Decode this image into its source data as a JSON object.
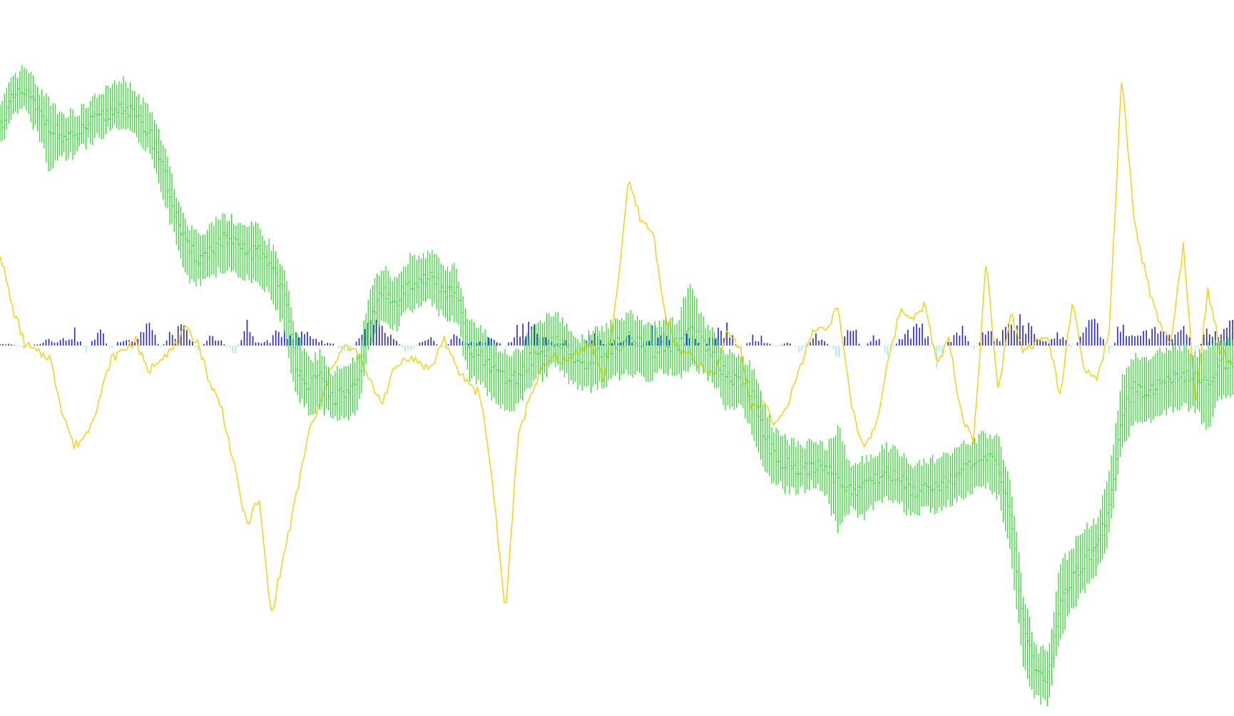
{
  "chart_data": {
    "type": "line",
    "title": "",
    "xlabel": "",
    "ylabel": "",
    "grid": false,
    "legend": "none",
    "colors": {
      "background": "#ffffff",
      "price_bars": "#22dd22",
      "oscillator_line": "#ffcc00",
      "histogram_positive": "#2222ee",
      "histogram_negative": "#99eeee"
    },
    "price_bars": {
      "ylim": [
        0,
        100
      ],
      "x": [
        0,
        10,
        20,
        30,
        40,
        50,
        60,
        70,
        80,
        90,
        100,
        110,
        120,
        130,
        140,
        150,
        160,
        170,
        180,
        190,
        200,
        210,
        220,
        230,
        240,
        250,
        260,
        270,
        280,
        290,
        300,
        310,
        320,
        330,
        340,
        350,
        360,
        370,
        380,
        390,
        400,
        410,
        420,
        430,
        440,
        450,
        460,
        470,
        480,
        490,
        500,
        510,
        520,
        530,
        540,
        550,
        560,
        570,
        580,
        590,
        600,
        610,
        620,
        630,
        640,
        650,
        660,
        670,
        680,
        690,
        700,
        710,
        720,
        730,
        740,
        750,
        760,
        770,
        780,
        790,
        800,
        810,
        820,
        830,
        840,
        850,
        860,
        870,
        880,
        890,
        900,
        910,
        920,
        930,
        940,
        950,
        960,
        970,
        980,
        990,
        1000
      ],
      "close": [
        86,
        90,
        91,
        88,
        86,
        84,
        84,
        86,
        87,
        88,
        89,
        87,
        85,
        81,
        74,
        68,
        66,
        67,
        69,
        68,
        67,
        67,
        65,
        61,
        50,
        47,
        48,
        45,
        46,
        47,
        57,
        61,
        59,
        62,
        63,
        63,
        61,
        61,
        52,
        51,
        49,
        48,
        48,
        51,
        52,
        54,
        52,
        50,
        51,
        52,
        53,
        54,
        53,
        52,
        53,
        53,
        55,
        53,
        51,
        48,
        48,
        46,
        39,
        36,
        35,
        34,
        35,
        34,
        33,
        31,
        32,
        33,
        34,
        33,
        31,
        32,
        32,
        33,
        34,
        35,
        36,
        35,
        27,
        11,
        4,
        3,
        15,
        18,
        21,
        23,
        29,
        43,
        47,
        46,
        47,
        48,
        48,
        48,
        48,
        50,
        50
      ],
      "low": [
        84,
        88,
        89,
        86,
        80,
        82,
        82,
        84,
        85,
        86,
        87,
        85,
        83,
        78,
        71,
        64,
        63,
        64,
        65,
        65,
        64,
        63,
        61,
        57,
        46,
        44,
        44,
        43,
        43,
        44,
        54,
        58,
        56,
        59,
        60,
        60,
        58,
        58,
        49,
        48,
        46,
        44,
        45,
        48,
        49,
        51,
        49,
        47,
        47,
        48,
        49,
        50,
        49,
        49,
        50,
        49,
        51,
        50,
        48,
        44,
        45,
        41,
        35,
        33,
        32,
        32,
        33,
        31,
        26,
        29,
        28,
        30,
        31,
        30,
        28,
        29,
        29,
        30,
        31,
        32,
        33,
        31,
        22,
        6,
        1,
        0,
        10,
        14,
        17,
        20,
        25,
        38,
        42,
        42,
        43,
        44,
        45,
        44,
        41,
        46,
        46
      ],
      "high": [
        88,
        92,
        94,
        91,
        89,
        87,
        87,
        88,
        90,
        91,
        92,
        90,
        88,
        84,
        77,
        71,
        69,
        70,
        72,
        71,
        70,
        70,
        67,
        64,
        54,
        50,
        51,
        48,
        49,
        50,
        60,
        64,
        62,
        65,
        66,
        66,
        64,
        64,
        56,
        55,
        52,
        51,
        51,
        54,
        56,
        57,
        55,
        53,
        54,
        55,
        56,
        57,
        56,
        55,
        56,
        56,
        62,
        56,
        54,
        51,
        51,
        49,
        43,
        39,
        38,
        37,
        38,
        37,
        40,
        34,
        35,
        36,
        37,
        36,
        34,
        35,
        35,
        36,
        37,
        38,
        39,
        38,
        31,
        15,
        7,
        6,
        19,
        22,
        25,
        26,
        33,
        47,
        51,
        50,
        51,
        52,
        52,
        51,
        52,
        53,
        53
      ]
    },
    "oscillator": {
      "name": "",
      "ylim": [
        -100,
        100
      ],
      "values": [
        32,
        15,
        4,
        1,
        0,
        -16,
        -28,
        -24,
        -14,
        -1,
        2,
        5,
        -5,
        0,
        2,
        8,
        5,
        -8,
        -16,
        -34,
        -52,
        -44,
        -80,
        -62,
        -44,
        -24,
        -15,
        -2,
        3,
        1,
        -8,
        -14,
        -4,
        0,
        -2,
        -4,
        6,
        -4,
        -8,
        -12,
        -40,
        -80,
        -26,
        -12,
        -4,
        0,
        -2,
        2,
        4,
        -8,
        18,
        54,
        42,
        38,
        12,
        2,
        0,
        -4,
        -6,
        8,
        3,
        -16,
        -14,
        -22,
        -14,
        -2,
        8,
        9,
        15,
        -14,
        -28,
        -22,
        -3,
        14,
        12,
        16,
        -2,
        5,
        -18,
        -26,
        29,
        -10,
        14,
        2,
        4,
        6,
        -12,
        16,
        -4,
        -8,
        8,
        86,
        42,
        24,
        10,
        4,
        34,
        -14,
        20,
        2,
        -2
      ],
      "x": [
        0,
        10,
        20,
        30,
        40,
        50,
        60,
        70,
        80,
        90,
        100,
        110,
        120,
        130,
        140,
        150,
        160,
        170,
        180,
        190,
        200,
        210,
        220,
        230,
        240,
        250,
        260,
        270,
        280,
        290,
        300,
        310,
        320,
        330,
        340,
        350,
        360,
        370,
        380,
        390,
        400,
        410,
        420,
        430,
        440,
        450,
        460,
        470,
        480,
        490,
        500,
        510,
        520,
        530,
        540,
        550,
        560,
        570,
        580,
        590,
        600,
        610,
        620,
        630,
        640,
        650,
        660,
        670,
        680,
        690,
        700,
        710,
        720,
        730,
        740,
        750,
        760,
        770,
        780,
        790,
        800,
        810,
        820,
        830,
        840,
        850,
        860,
        870,
        880,
        890,
        900,
        910,
        920,
        930,
        940,
        950,
        960,
        970,
        980,
        990,
        1000
      ]
    },
    "histogram": {
      "name": "",
      "ylim": [
        -100,
        100
      ],
      "x": [
        0,
        10,
        20,
        30,
        40,
        50,
        60,
        70,
        80,
        90,
        100,
        110,
        120,
        130,
        140,
        150,
        160,
        170,
        180,
        190,
        200,
        210,
        220,
        230,
        240,
        250,
        260,
        270,
        280,
        290,
        300,
        310,
        320,
        330,
        340,
        350,
        360,
        370,
        380,
        390,
        400,
        410,
        420,
        430,
        440,
        450,
        460,
        470,
        480,
        490,
        500,
        510,
        520,
        530,
        540,
        550,
        560,
        570,
        580,
        590,
        600,
        610,
        620,
        630,
        640,
        650,
        660,
        670,
        680,
        690,
        700,
        710,
        720,
        730,
        740,
        750,
        760,
        770,
        780,
        790,
        800,
        810,
        820,
        830,
        840,
        850,
        860,
        870,
        880,
        890,
        900,
        910,
        920,
        930,
        940,
        950,
        960,
        970,
        980,
        990,
        1000
      ],
      "values": [
        2,
        1,
        -3,
        2,
        8,
        5,
        14,
        -6,
        18,
        -5,
        10,
        4,
        26,
        -4,
        14,
        16,
        -5,
        8,
        4,
        -10,
        20,
        2,
        6,
        18,
        10,
        14,
        4,
        2,
        -8,
        4,
        22,
        16,
        6,
        -7,
        2,
        6,
        -4,
        12,
        2,
        4,
        8,
        -3,
        18,
        24,
        8,
        2,
        4,
        -6,
        12,
        2,
        4,
        8,
        -2,
        16,
        8,
        -4,
        14,
        -2,
        14,
        18,
        -6,
        10,
        6,
        -2,
        4,
        -8,
        10,
        4,
        -12,
        26,
        -5,
        12,
        -10,
        6,
        14,
        18,
        -18,
        6,
        16,
        -6,
        16,
        4,
        26,
        24,
        10,
        4,
        12,
        -4,
        16,
        22,
        -8,
        24,
        6,
        16,
        14,
        8,
        20,
        -8,
        16,
        8,
        24
      ]
    }
  }
}
